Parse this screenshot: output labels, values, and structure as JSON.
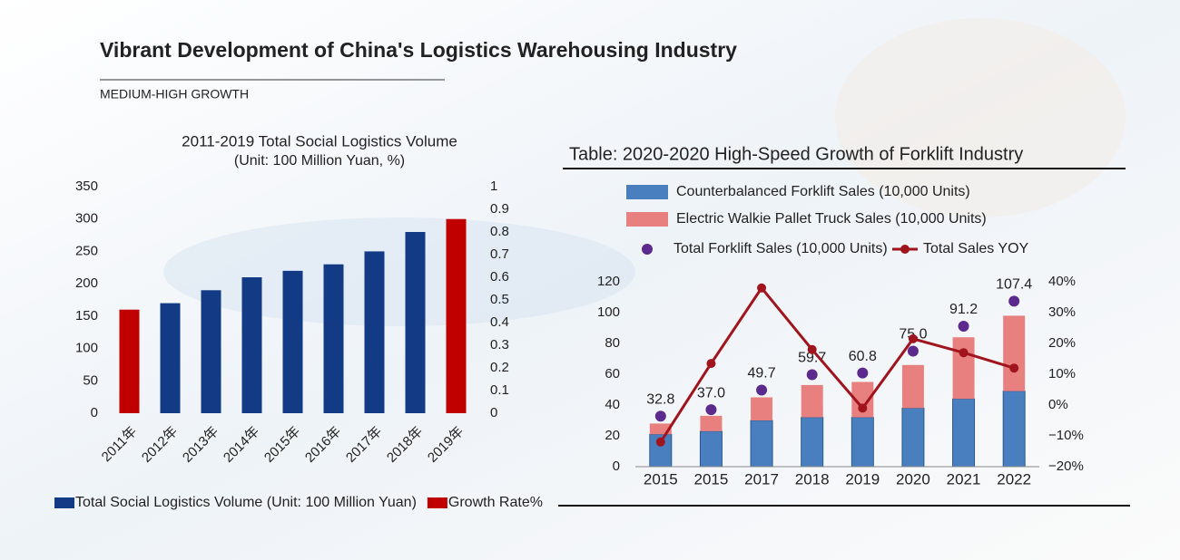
{
  "header": {
    "title": "Vibrant Development of China's Logistics Warehousing Industry",
    "subtitle": "MEDIUM-HIGH GROWTH"
  },
  "chart_data": [
    {
      "type": "bar",
      "title": "2011-2019 Total Social Logistics Volume",
      "subtitle": "(Unit: 100 Million Yuan, %)",
      "categories": [
        "2011年",
        "2012年",
        "2013年",
        "2014年",
        "2015年",
        "2016年",
        "2017年",
        "2018年",
        "2019年"
      ],
      "series": [
        {
          "name": "Total Social Logistics Volume (Unit: 100 Million Yuan)",
          "color": "#123a85",
          "type": "bar",
          "values": [
            null,
            170,
            190,
            210,
            220,
            230,
            250,
            280,
            null
          ]
        },
        {
          "name": "Growth Rate%",
          "color": "#c00000",
          "type": "bar",
          "values": [
            160,
            null,
            null,
            null,
            null,
            null,
            null,
            null,
            300
          ]
        }
      ],
      "ylim": [
        0,
        350
      ],
      "yticks": [
        0,
        50,
        100,
        150,
        200,
        250,
        300,
        350
      ],
      "y2lim": [
        0,
        1
      ],
      "y2ticks": [
        0,
        0.1,
        0.2,
        0.3,
        0.4,
        0.5,
        0.6,
        0.7,
        0.8,
        0.9,
        1
      ],
      "legend": "bottom",
      "grid": false
    },
    {
      "type": "bar",
      "title": "Table: 2020-2020 High-Speed Growth of Forklift Industry",
      "categories": [
        "2015",
        "2015",
        "2017",
        "2018",
        "2019",
        "2020",
        "2021",
        "2022"
      ],
      "series": [
        {
          "name": "Counterbalanced Forklift Sales (10,000 Units)",
          "color": "#4a7fbf",
          "type": "bar",
          "values": [
            21,
            23,
            30,
            32,
            32,
            38,
            44,
            49
          ]
        },
        {
          "name": "Electric Walkie Pallet Truck Sales (10,000 Units)",
          "color": "#e98080",
          "type": "bar",
          "values": [
            7,
            10,
            15,
            21,
            23,
            28,
            40,
            49
          ]
        },
        {
          "name": "Total Forklift Sales (10,000 Units)",
          "color": "#5b2a8c",
          "type": "scatter",
          "values": [
            32.8,
            37.0,
            49.7,
            59.7,
            60.8,
            75.0,
            91.2,
            107.4
          ],
          "value_labels": [
            "32.8",
            "37.0",
            "49.7",
            "59.7",
            "60.8",
            "75.0",
            "91.2",
            "107.4"
          ]
        },
        {
          "name": "Total Sales YOY",
          "color": "#a0141e",
          "type": "line",
          "axis": "y2",
          "values": [
            -12,
            13.5,
            38,
            18,
            -1,
            21.5,
            17,
            12
          ]
        }
      ],
      "ylim": [
        0,
        120
      ],
      "yticks": [
        0,
        20,
        40,
        60,
        80,
        100,
        120
      ],
      "y2lim": [
        -20,
        40
      ],
      "y2ticks": [
        {
          "value": -20,
          "label": "−20%"
        },
        {
          "value": -10,
          "label": "−10%"
        },
        {
          "value": 0,
          "label": "0%"
        },
        {
          "value": 10,
          "label": "10%"
        },
        {
          "value": 20,
          "label": "20%"
        },
        {
          "value": 30,
          "label": "30%"
        },
        {
          "value": 40,
          "label": "40%"
        }
      ],
      "legend": "top",
      "grid": false
    }
  ]
}
